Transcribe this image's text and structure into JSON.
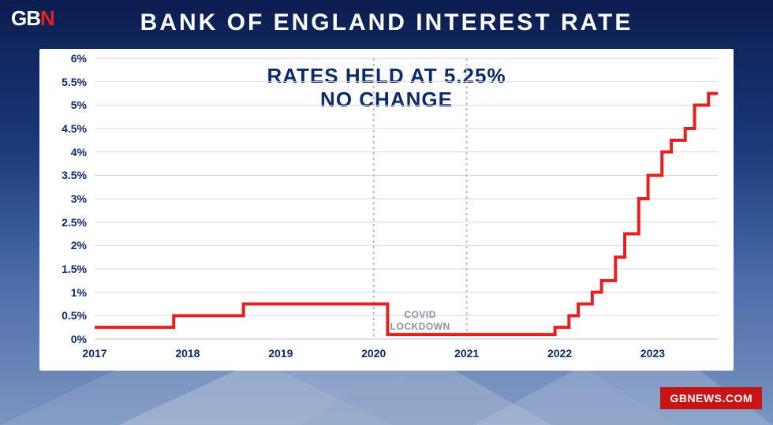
{
  "logo": {
    "text_gb": "GB",
    "text_n": "N"
  },
  "title": "BANK OF ENGLAND INTEREST RATE",
  "subtitle_line1": "RATES HELD AT 5.25%",
  "subtitle_line2": "NO CHANGE",
  "covid_line1": "COVID",
  "covid_line2": "LOCKDOWN",
  "footer": "GBNEWS.COM",
  "chart": {
    "type": "step-line",
    "background_color": "#ffffff",
    "line_color": "#e62020",
    "line_width": 4,
    "grid_color": "#d6d6e0",
    "dotted_line_color": "#bcbcc8",
    "axis_color": "#0b2a6b",
    "label_color": "#0b2a6b",
    "label_fontsize": 14,
    "ylim": [
      0,
      6
    ],
    "ytick_step": 0.5,
    "yticks": [
      "0%",
      "0.5%",
      "1%",
      "1.5%",
      "2%",
      "2.5%",
      "3%",
      "3.5%",
      "4%",
      "4.5%",
      "5%",
      "5.5%",
      "6%"
    ],
    "xlim": [
      2017,
      2023.7
    ],
    "xticks": [
      2017,
      2018,
      2019,
      2020,
      2021,
      2022,
      2023
    ],
    "covid_band": {
      "start": 2020,
      "end": 2021
    },
    "data": [
      {
        "x": 2017.0,
        "y": 0.25
      },
      {
        "x": 2017.85,
        "y": 0.25
      },
      {
        "x": 2017.85,
        "y": 0.5
      },
      {
        "x": 2018.6,
        "y": 0.5
      },
      {
        "x": 2018.6,
        "y": 0.75
      },
      {
        "x": 2020.15,
        "y": 0.75
      },
      {
        "x": 2020.15,
        "y": 0.1
      },
      {
        "x": 2021.95,
        "y": 0.1
      },
      {
        "x": 2021.95,
        "y": 0.25
      },
      {
        "x": 2022.1,
        "y": 0.25
      },
      {
        "x": 2022.1,
        "y": 0.5
      },
      {
        "x": 2022.2,
        "y": 0.5
      },
      {
        "x": 2022.2,
        "y": 0.75
      },
      {
        "x": 2022.35,
        "y": 0.75
      },
      {
        "x": 2022.35,
        "y": 1.0
      },
      {
        "x": 2022.45,
        "y": 1.0
      },
      {
        "x": 2022.45,
        "y": 1.25
      },
      {
        "x": 2022.6,
        "y": 1.25
      },
      {
        "x": 2022.6,
        "y": 1.75
      },
      {
        "x": 2022.7,
        "y": 1.75
      },
      {
        "x": 2022.7,
        "y": 2.25
      },
      {
        "x": 2022.85,
        "y": 2.25
      },
      {
        "x": 2022.85,
        "y": 3.0
      },
      {
        "x": 2022.95,
        "y": 3.0
      },
      {
        "x": 2022.95,
        "y": 3.5
      },
      {
        "x": 2023.1,
        "y": 3.5
      },
      {
        "x": 2023.1,
        "y": 4.0
      },
      {
        "x": 2023.2,
        "y": 4.0
      },
      {
        "x": 2023.2,
        "y": 4.25
      },
      {
        "x": 2023.35,
        "y": 4.25
      },
      {
        "x": 2023.35,
        "y": 4.5
      },
      {
        "x": 2023.45,
        "y": 4.5
      },
      {
        "x": 2023.45,
        "y": 5.0
      },
      {
        "x": 2023.6,
        "y": 5.0
      },
      {
        "x": 2023.6,
        "y": 5.25
      },
      {
        "x": 2023.7,
        "y": 5.25
      }
    ]
  }
}
